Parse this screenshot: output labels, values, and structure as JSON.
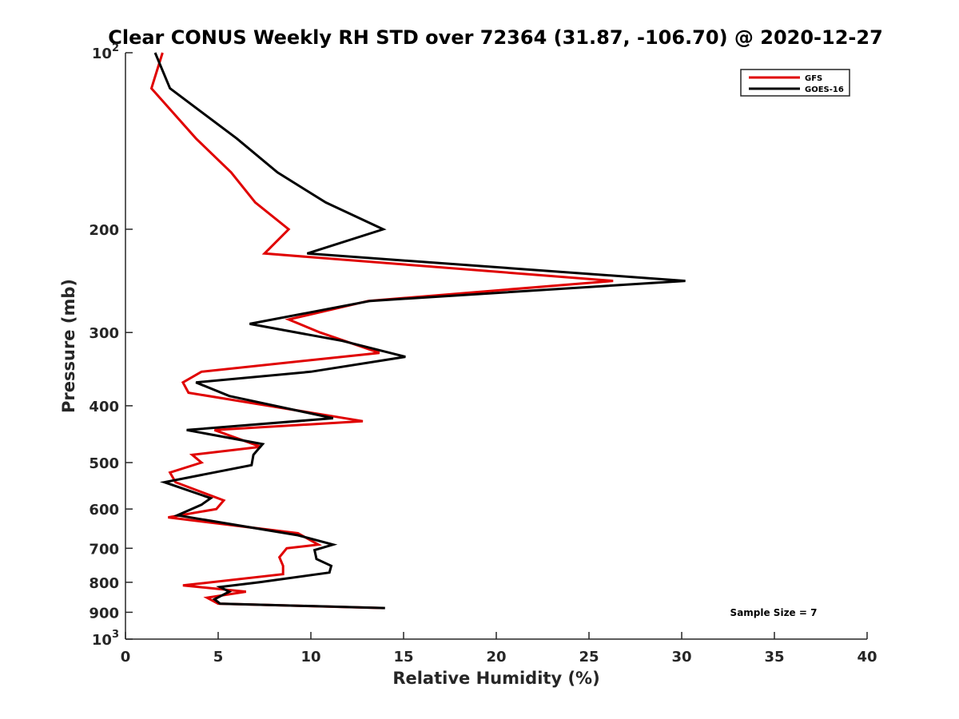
{
  "chart_data": {
    "type": "line",
    "title": "Clear CONUS Weekly RH STD over 72364 (31.87, -106.70) @ 2020-12-27",
    "xlabel": "Relative Humidity (%)",
    "ylabel": "Pressure (mb)",
    "xlim": [
      0,
      40
    ],
    "ylim": [
      100,
      1000
    ],
    "y_scale": "log",
    "y_reversed": true,
    "x_ticks": [
      0,
      5,
      10,
      15,
      20,
      25,
      30,
      35,
      40
    ],
    "x_tick_labels": [
      "0",
      "5",
      "10",
      "15",
      "20",
      "25",
      "30",
      "35",
      "40"
    ],
    "y_ticks": [
      100,
      200,
      300,
      400,
      500,
      600,
      700,
      800,
      900,
      1000
    ],
    "y_tick_labels": [
      "10^2",
      "200",
      "300",
      "400",
      "500",
      "600",
      "700",
      "800",
      "900",
      "10^3"
    ],
    "grid": false,
    "legend_position": "top-right",
    "annotation": "Sample Size = 7",
    "series": [
      {
        "name": "GFS",
        "color": "#e00000",
        "x": [
          2.0,
          1.4,
          3.8,
          5.7,
          7.0,
          8.8,
          7.5,
          26.3,
          13.1,
          8.8,
          10.5,
          13.7,
          4.1,
          3.1,
          3.4,
          12.8,
          4.8,
          7.3,
          3.6,
          4.1,
          2.4,
          2.7,
          5.3,
          4.9,
          2.3,
          9.3,
          10.4,
          8.7,
          8.3,
          8.5,
          8.5,
          3.1,
          6.5,
          4.4,
          5.0,
          13.9
        ],
        "y": [
          100,
          115,
          140,
          160,
          180,
          200,
          220,
          245,
          265,
          285,
          300,
          325,
          350,
          365,
          380,
          425,
          440,
          470,
          485,
          500,
          520,
          540,
          580,
          600,
          620,
          660,
          690,
          700,
          725,
          750,
          775,
          810,
          830,
          850,
          870,
          885
        ]
      },
      {
        "name": "GOES-16",
        "color": "#000000",
        "x": [
          1.6,
          2.4,
          6.0,
          8.2,
          10.8,
          13.9,
          9.8,
          30.2,
          13.2,
          6.7,
          11.7,
          15.1,
          10.0,
          3.8,
          5.6,
          11.2,
          3.3,
          7.4,
          6.9,
          6.8,
          2.1,
          4.6,
          4.1,
          2.8,
          9.3,
          11.2,
          10.2,
          10.3,
          11.1,
          11.0,
          7.2,
          5.1,
          5.6,
          4.8,
          5.1,
          14.0
        ],
        "y": [
          100,
          115,
          140,
          160,
          180,
          200,
          220,
          245,
          265,
          290,
          310,
          330,
          350,
          365,
          385,
          420,
          440,
          465,
          485,
          505,
          540,
          575,
          590,
          615,
          665,
          690,
          705,
          730,
          750,
          770,
          800,
          815,
          830,
          855,
          870,
          885
        ]
      }
    ]
  }
}
